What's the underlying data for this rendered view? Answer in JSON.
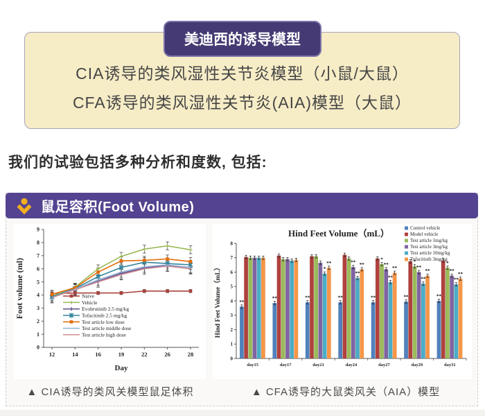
{
  "header": {
    "badge": "美迪西的诱导模型",
    "lines": [
      "CIA诱导的类风湿性关节炎模型（小鼠/大鼠）",
      "CFA诱导的类风湿性关节炎(AIA)模型（大鼠）"
    ]
  },
  "intro": "我们的试验包括多种分析和度数, 包括:",
  "panel": {
    "title": "鼠足容积(Foot Volume)",
    "captions": [
      "▲ CIA诱导的类风关模型鼠足体积",
      "▲ CFA诱导的大鼠类风关（AIA）模型"
    ]
  },
  "colors": {
    "purple_header": "#544390",
    "badge_purple": "#453a73",
    "cream": "#f6ecc6",
    "gold_icon": "#f2b01e"
  },
  "chart_data": [
    {
      "type": "line",
      "title": "",
      "xlabel": "Day",
      "ylabel": "Foot volume (ml)",
      "x": [
        12,
        14,
        16,
        19,
        22,
        26,
        28
      ],
      "ylim": [
        0,
        9
      ],
      "yticks": [
        0,
        1,
        2,
        3,
        4,
        5,
        6,
        7,
        8,
        9
      ],
      "grid": false,
      "legend_position": "lower-left-inside",
      "error_bars": true,
      "series": [
        {
          "name": "Naive",
          "color": "#a8423c",
          "marker": "square",
          "error": 0.12,
          "values": [
            4.1,
            4.15,
            4.15,
            4.15,
            4.3,
            4.3,
            4.3
          ]
        },
        {
          "name": "Vehicle",
          "color": "#9aba58",
          "marker": "plus",
          "error": 0.3,
          "values": [
            3.9,
            4.6,
            6.0,
            6.95,
            7.5,
            7.75,
            7.45
          ]
        },
        {
          "name": "Evobrutinib 2.5 mg/kg",
          "color": "#5c4a86",
          "marker": "plus",
          "error": 0.45,
          "values": [
            3.85,
            4.4,
            5.05,
            5.65,
            6.05,
            6.25,
            6.1
          ]
        },
        {
          "name": "Tofacitinib 2.5 mg/kg",
          "color": "#31859c",
          "marker": "x",
          "error": 0.35,
          "values": [
            3.85,
            4.5,
            5.4,
            6.1,
            6.5,
            6.4,
            6.3
          ]
        },
        {
          "name": "Test article low dose",
          "color": "#e36c0a",
          "marker": "square",
          "error": 0.3,
          "values": [
            4.05,
            4.55,
            5.75,
            6.6,
            6.65,
            6.75,
            6.55
          ]
        },
        {
          "name": "Test article middle dose",
          "color": "#93b1d7",
          "marker": "none",
          "error": 0.4,
          "values": [
            3.8,
            4.45,
            5.15,
            5.75,
            6.15,
            6.3,
            6.1
          ]
        },
        {
          "name": "Test article high dose",
          "color": "#d08f96",
          "marker": "none",
          "error": 0.4,
          "values": [
            3.8,
            4.4,
            5.0,
            5.55,
            6.0,
            6.2,
            6.0
          ]
        }
      ]
    },
    {
      "type": "bar",
      "title": "Hind Feet Volume（mL）",
      "xlabel": "",
      "ylabel": "Hind Feet Volume（mL）",
      "categories": [
        "day15",
        "day17",
        "day21",
        "day24",
        "day27",
        "day29",
        "day31"
      ],
      "ylim": [
        0,
        8
      ],
      "yticks": [
        0,
        1,
        2,
        3,
        4,
        5,
        6,
        7,
        8
      ],
      "grid": false,
      "legend_position": "upper-right",
      "error": 0.12,
      "series": [
        {
          "name": "Control vehicle",
          "color": "#4f81bd",
          "values": [
            3.6,
            3.85,
            3.9,
            3.9,
            3.9,
            3.95,
            4.0
          ],
          "sig": [
            "**",
            "**",
            "**",
            "**",
            "**",
            "**",
            "**"
          ]
        },
        {
          "name": "Model vehicle",
          "color": "#b0413d",
          "values": [
            7.05,
            7.15,
            7.1,
            7.2,
            6.95,
            6.75,
            6.8
          ],
          "sig": [
            "",
            "",
            "",
            "",
            "",
            "",
            ""
          ]
        },
        {
          "name": "Test article 1mg/kg",
          "color": "#9bbb59",
          "values": [
            7.0,
            6.9,
            7.1,
            6.95,
            6.55,
            6.4,
            6.3
          ],
          "sig": [
            "",
            "",
            "",
            "",
            "*",
            "*",
            "*"
          ]
        },
        {
          "name": "Test article 3mg/kg",
          "color": "#8064a2",
          "values": [
            7.0,
            6.9,
            6.65,
            6.35,
            6.2,
            6.0,
            5.75
          ],
          "sig": [
            "",
            "",
            "",
            "**",
            "**",
            "**",
            "**"
          ]
        },
        {
          "name": "Test article 10mg/kg",
          "color": "#4bacc6",
          "values": [
            7.0,
            6.8,
            5.9,
            5.6,
            5.3,
            5.2,
            5.15
          ],
          "sig": [
            "",
            "",
            "*",
            "**",
            "**",
            "**",
            "**"
          ]
        },
        {
          "name": "Tofacitinib 3mg/kg",
          "color": "#f79646",
          "values": [
            7.0,
            6.85,
            6.3,
            6.2,
            5.95,
            5.75,
            5.55
          ],
          "sig": [
            "",
            "",
            "**",
            "**",
            "**",
            "**",
            "**"
          ]
        }
      ]
    }
  ]
}
